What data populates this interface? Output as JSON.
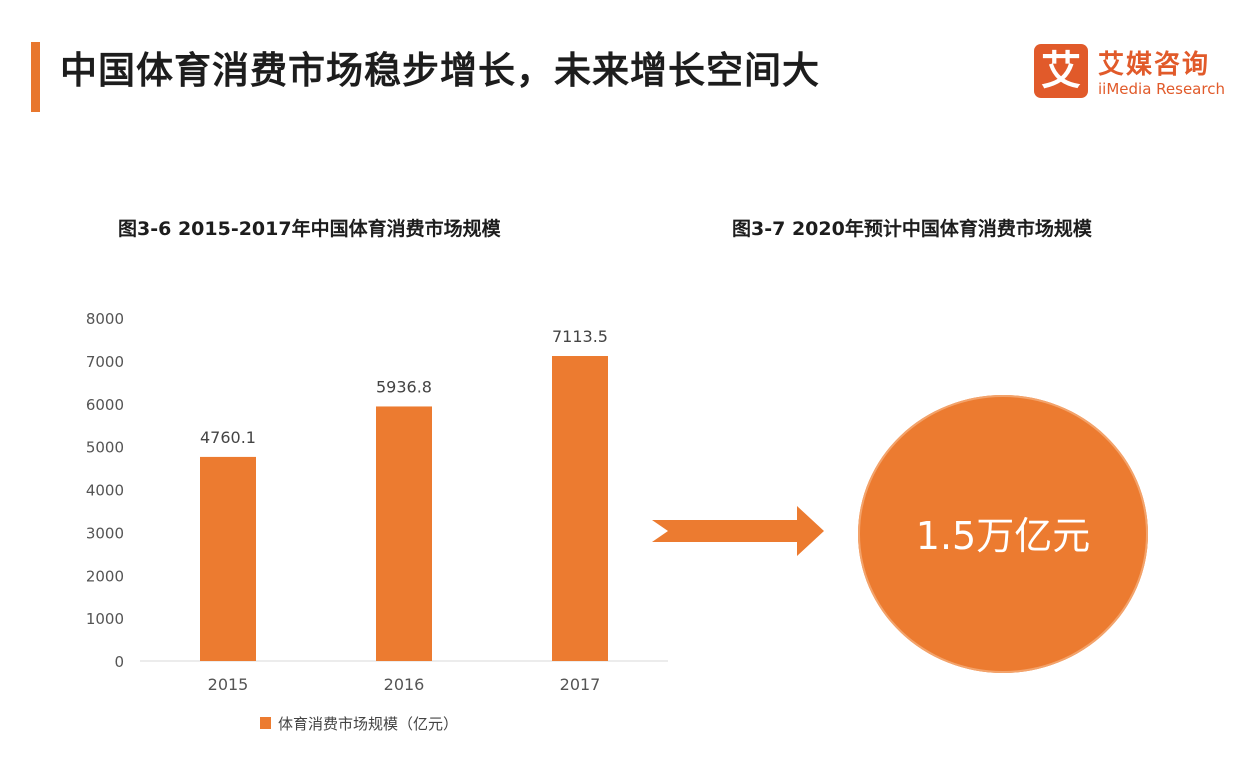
{
  "header": {
    "title": "中国体育消费市场稳步增长，未来增长空间大",
    "logo_mark": "艾",
    "logo_name": "艾媒咨询",
    "logo_sub": "iiMedia Research",
    "accent_color": "#e8772e",
    "logo_color": "#e15a2a"
  },
  "figure_left": {
    "title": "图3-6  2015-2017年中国体育消费市场规模"
  },
  "figure_right": {
    "title": "图3-7  2020年预计中国体育消费市场规模",
    "value_text": "1.5万亿元",
    "circle_color": "#ec7b30"
  },
  "chart_data": {
    "type": "bar",
    "title": "图3-6  2015-2017年中国体育消费市场规模",
    "categories": [
      "2015",
      "2016",
      "2017"
    ],
    "series": [
      {
        "name": "体育消费市场规模（亿元）",
        "values": [
          4760.1,
          5936.8,
          7113.5
        ],
        "color": "#ec7b30"
      }
    ],
    "data_labels": [
      "4760.1",
      "5936.8",
      "7113.5"
    ],
    "ylim": [
      0,
      8000
    ],
    "yticks": [
      0,
      1000,
      2000,
      3000,
      4000,
      5000,
      6000,
      7000,
      8000
    ],
    "grid": false,
    "legend_position": "bottom-left"
  },
  "legend": {
    "label": "体育消费市场规模（亿元）"
  }
}
